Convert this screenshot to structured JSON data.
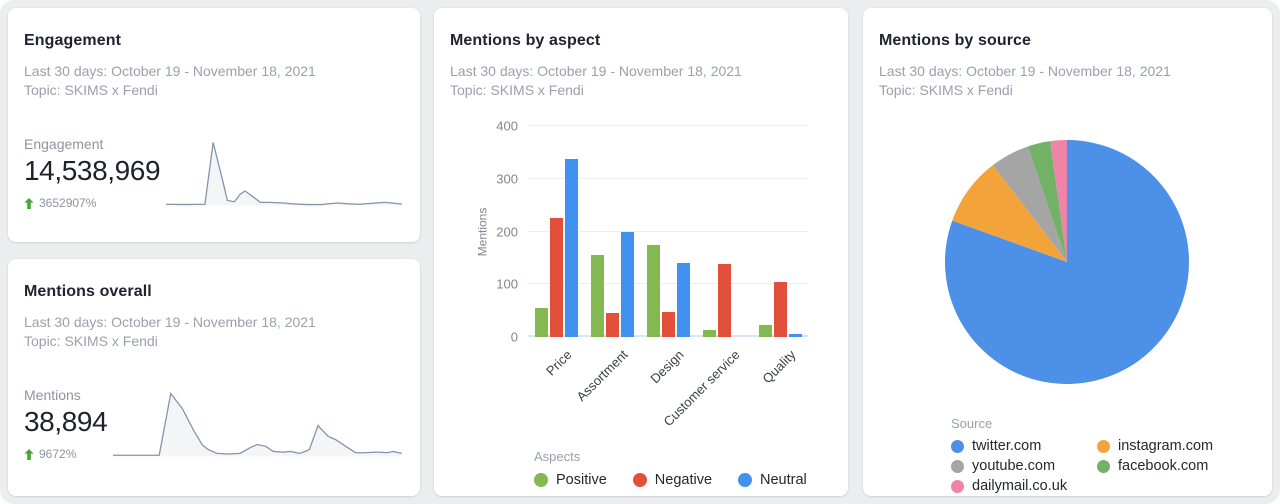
{
  "colors": {
    "page_bg": "#EBEDEF",
    "card_bg": "#FFFFFF",
    "title": "#202430",
    "subtitle": "#9AA1AB",
    "metric_label": "#8D959F",
    "metric_value": "#1E222A",
    "change_text": "#8B949E",
    "change_arrow": "#43A832",
    "spark_line": "#8395AB",
    "spark_fill": "#F3F5F7",
    "positive_green": "#84B850",
    "negative_red": "#E2503C",
    "neutral_blue": "#4191F0",
    "pie_blue": "#4D90E8",
    "pie_orange": "#F2A33A",
    "pie_gray": "#A5A5A5",
    "pie_green": "#72B266",
    "pie_pink": "#F084A8"
  },
  "cards": {
    "engagement": {
      "title": "Engagement",
      "subtitle_line1": "Last 30 days: October 19 - November 18, 2021",
      "subtitle_line2": "Topic: SKIMS x Fendi",
      "metric_label": "Engagement",
      "metric_value": "14,538,969",
      "change": "3652907%"
    },
    "mentions_overall": {
      "title": "Mentions overall",
      "subtitle_line1": "Last 30 days: October 19 - November 18, 2021",
      "subtitle_line2": "Topic: SKIMS x Fendi",
      "metric_label": "Mentions",
      "metric_value": "38,894",
      "change": "9672%"
    },
    "mentions_by_aspect": {
      "title": "Mentions by aspect",
      "subtitle_line1": "Last 30 days: October 19 - November 18, 2021",
      "subtitle_line2": "Topic: SKIMS x Fendi"
    },
    "mentions_by_source": {
      "title": "Mentions by source",
      "subtitle_line1": "Last 30 days: October 19 - November 18, 2021",
      "subtitle_line2": "Topic: SKIMS x Fendi"
    }
  },
  "chart_data": [
    {
      "type": "line",
      "name": "engagement-sparkline",
      "title": "Engagement over last 30 days",
      "line_color": "#8395AB",
      "fill_color": "#F3F5F7",
      "points": [
        [
          0,
          2
        ],
        [
          8,
          1.5
        ],
        [
          16.5,
          2
        ],
        [
          20,
          100
        ],
        [
          24,
          40
        ],
        [
          26,
          8
        ],
        [
          29,
          6
        ],
        [
          31.5,
          18
        ],
        [
          33.5,
          23
        ],
        [
          36.5,
          15
        ],
        [
          40,
          5
        ],
        [
          44,
          5
        ],
        [
          50,
          4
        ],
        [
          54,
          2.5
        ],
        [
          60,
          1.5
        ],
        [
          66,
          1.5
        ],
        [
          69.5,
          3
        ],
        [
          73,
          4
        ],
        [
          78,
          2.5
        ],
        [
          82,
          2
        ],
        [
          85.5,
          3
        ],
        [
          89,
          4
        ],
        [
          93,
          5
        ],
        [
          96,
          4
        ],
        [
          100,
          2
        ]
      ]
    },
    {
      "type": "line",
      "name": "mentions-sparkline",
      "title": "Mentions over last 30 days",
      "line_color": "#8395AB",
      "fill_color": "#F3F5F7",
      "points": [
        [
          0,
          2
        ],
        [
          10,
          2
        ],
        [
          16,
          2
        ],
        [
          20,
          100
        ],
        [
          24,
          76
        ],
        [
          28,
          41
        ],
        [
          31,
          18
        ],
        [
          33,
          11
        ],
        [
          36,
          5
        ],
        [
          40,
          4
        ],
        [
          44,
          5
        ],
        [
          47.5,
          14
        ],
        [
          50,
          19
        ],
        [
          53,
          16
        ],
        [
          55.5,
          8
        ],
        [
          59,
          7
        ],
        [
          61.5,
          8
        ],
        [
          64.5,
          5
        ],
        [
          66,
          7
        ],
        [
          68,
          11
        ],
        [
          71,
          49
        ],
        [
          74.5,
          32
        ],
        [
          77,
          27
        ],
        [
          80,
          18
        ],
        [
          84,
          6
        ],
        [
          87,
          6
        ],
        [
          91.5,
          7
        ],
        [
          95,
          6
        ],
        [
          97,
          8
        ],
        [
          100,
          5
        ]
      ]
    },
    {
      "type": "bar",
      "name": "mentions-by-aspect",
      "title": "Mentions by aspect",
      "categories": [
        "Price",
        "Assortment",
        "Design",
        "Customer service",
        "Quality"
      ],
      "series": [
        {
          "name": "Positive",
          "color": "#84B850",
          "values": [
            55,
            155,
            175,
            13,
            22
          ]
        },
        {
          "name": "Negative",
          "color": "#E2503C",
          "values": [
            225,
            45,
            48,
            139,
            105
          ]
        },
        {
          "name": "Neutral",
          "color": "#4191F0",
          "values": [
            338,
            200,
            140,
            0,
            6
          ]
        }
      ],
      "xlabel": "",
      "ylabel": "Mentions",
      "ylim": [
        0,
        400
      ],
      "yticks": [
        0,
        100,
        200,
        300,
        400
      ],
      "grid": true,
      "legend_title": "Aspects",
      "legend_position": "bottom"
    },
    {
      "type": "pie",
      "name": "mentions-by-source",
      "title": "Mentions by source",
      "labels": [
        "twitter.com",
        "instagram.com",
        "youtube.com",
        "facebook.com",
        "dailymail.co.uk"
      ],
      "values": [
        80.5,
        9.1,
        5.2,
        3.0,
        2.2
      ],
      "colors": [
        "#4D90E8",
        "#F2A33A",
        "#A5A5A5",
        "#72B266",
        "#F084A8"
      ],
      "start_angle_deg": 0,
      "direction": "clockwise",
      "legend_title": "Source",
      "legend_position": "bottom"
    }
  ]
}
